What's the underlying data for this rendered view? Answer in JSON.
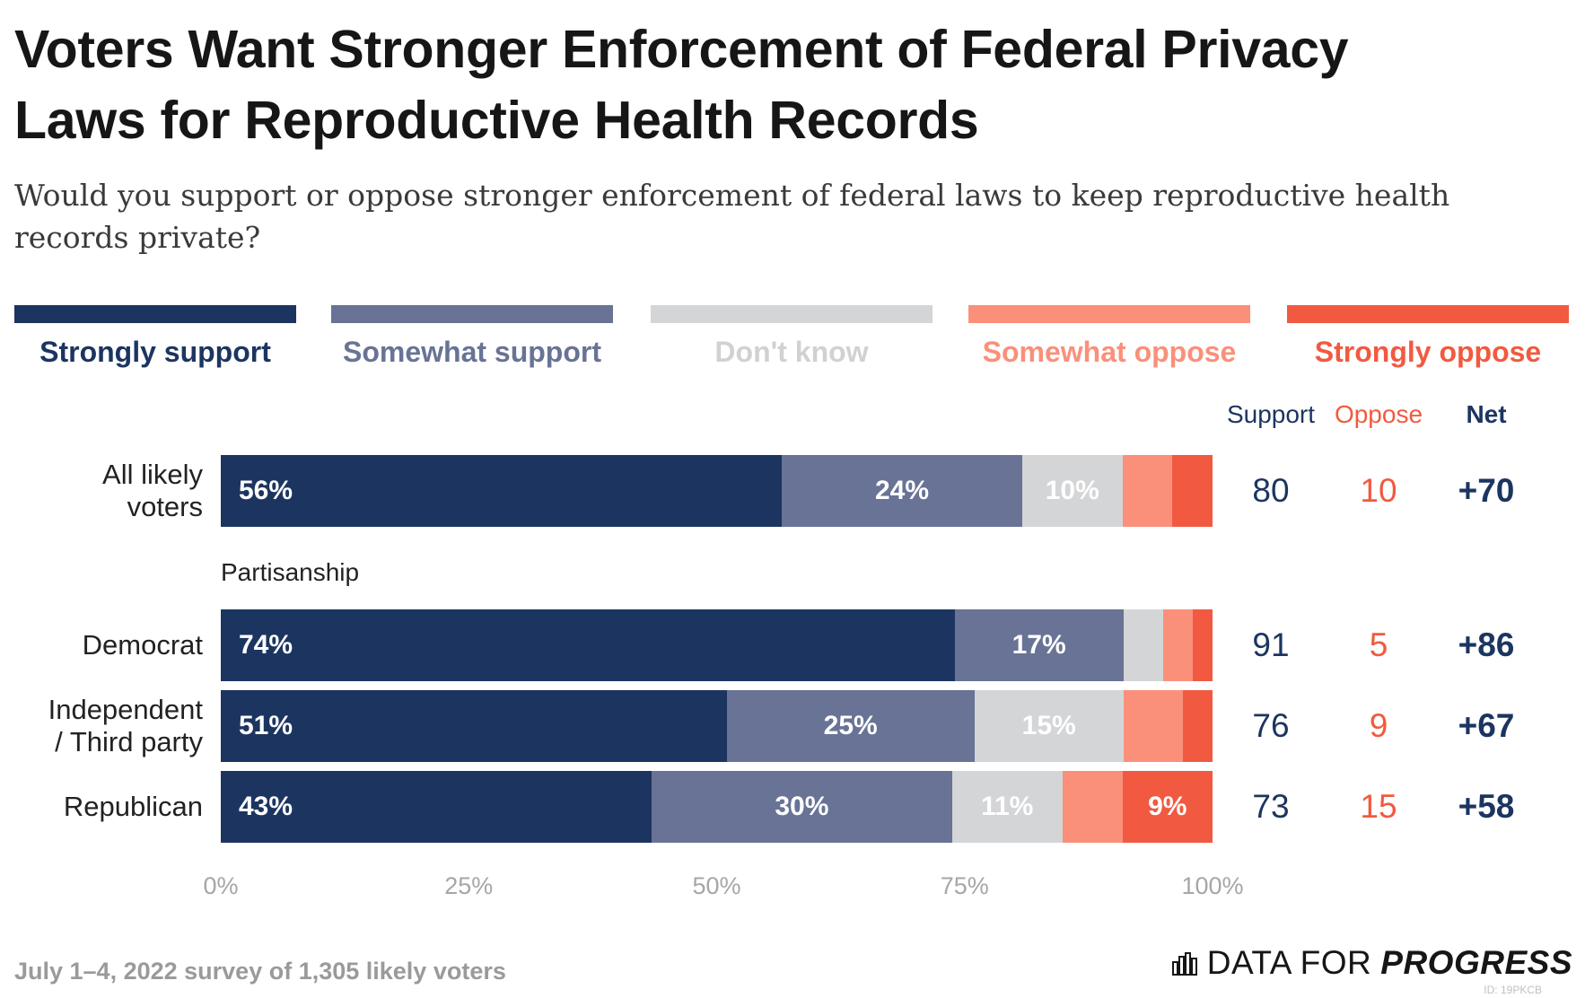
{
  "title_line1": "Voters Want Stronger Enforcement of Federal Privacy",
  "title_line2": "Laws for Reproductive Health Records",
  "subtitle": "Would you support or oppose stronger enforcement of federal laws to keep reproductive health records private?",
  "footer": "July 1–4, 2022 survey of 1,305 likely voters",
  "brand": {
    "part1": "DATA FOR",
    "part2": "PROGRESS",
    "icon": "bar-chart-logo-icon",
    "id_text": "ID: 19PKCB"
  },
  "colors": {
    "strongly_support": "#1c3560",
    "somewhat_support": "#687395",
    "dont_know": "#d4d5d7",
    "somewhat_oppose": "#fa907a",
    "strongly_oppose": "#f15a40",
    "support_text": "#1c3560",
    "oppose_text": "#f15a40"
  },
  "column_headers": {
    "support": "Support",
    "oppose": "Oppose",
    "net": "Net"
  },
  "section_label": "Partisanship",
  "chart_data": {
    "type": "bar",
    "orientation": "horizontal",
    "stacked": true,
    "title": "Voters Want Stronger Enforcement of Federal Privacy Laws for Reproductive Health Records",
    "subtitle": "Would you support or oppose stronger enforcement of federal laws to keep reproductive health records private?",
    "categories": [
      "All likely voters",
      "Democrat",
      "Independent / Third party",
      "Republican"
    ],
    "series": [
      {
        "name": "Strongly support",
        "values": [
          56,
          74,
          51,
          43
        ]
      },
      {
        "name": "Somewhat support",
        "values": [
          24,
          17,
          25,
          30
        ]
      },
      {
        "name": "Don't know",
        "values": [
          10,
          4,
          15,
          11
        ]
      },
      {
        "name": "Somewhat oppose",
        "values": [
          5,
          3,
          6,
          6
        ]
      },
      {
        "name": "Strongly oppose",
        "values": [
          4,
          2,
          3,
          9
        ]
      }
    ],
    "data_labels": [
      [
        "56%",
        "24%",
        "10%",
        "",
        ""
      ],
      [
        "74%",
        "17%",
        "",
        "",
        ""
      ],
      [
        "51%",
        "25%",
        "15%",
        "",
        ""
      ],
      [
        "43%",
        "30%",
        "11%",
        "",
        "9%"
      ]
    ],
    "summary": {
      "support": [
        80,
        91,
        76,
        73
      ],
      "oppose": [
        10,
        5,
        9,
        15
      ],
      "net": [
        "+70",
        "+86",
        "+67",
        "+58"
      ]
    },
    "x_ticks": [
      "0%",
      "25%",
      "50%",
      "75%",
      "100%"
    ],
    "xlim": [
      0,
      100
    ],
    "legend_position": "top",
    "grid": false
  }
}
